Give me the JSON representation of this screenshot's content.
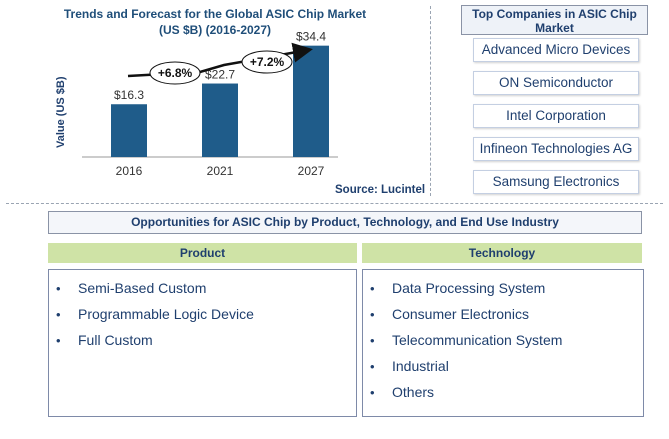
{
  "chart_data": {
    "type": "bar",
    "title": "Trends and Forecast for the Global ASIC Chip Market",
    "subtitle": "(US $B) (2016-2027)",
    "ylabel": "Value (US $B)",
    "xlabel": "",
    "categories": [
      "2016",
      "2021",
      "2027"
    ],
    "values": [
      16.3,
      22.7,
      34.4
    ],
    "data_labels": [
      "$16.3",
      "$22.7",
      "$34.4"
    ],
    "ylim": [
      0,
      40
    ],
    "bar_color": "#1f5c8a",
    "growth_annotations": [
      "+6.8%",
      "+7.2%"
    ],
    "source": "Source: Lucintel"
  },
  "top_companies": {
    "title": "Top Companies in ASIC Chip Market",
    "items": [
      "Advanced Micro Devices",
      "ON Semiconductor",
      "Intel Corporation",
      "Infineon Technologies AG",
      "Samsung Electronics"
    ]
  },
  "opportunities": {
    "title": "Opportunities for ASIC Chip by Product, Technology,  and End Use Industry",
    "product": {
      "header": "Product",
      "items": [
        "Semi-Based Custom",
        "Programmable Logic Device",
        "Full Custom"
      ]
    },
    "technology": {
      "header": "Technology",
      "items": [
        "Data Processing System",
        "Consumer Electronics",
        "Telecommunication System",
        "Industrial",
        "Others"
      ]
    },
    "bullet": "•",
    "header_color": "#cfe3a6",
    "text_color": "#1f3f6e"
  }
}
